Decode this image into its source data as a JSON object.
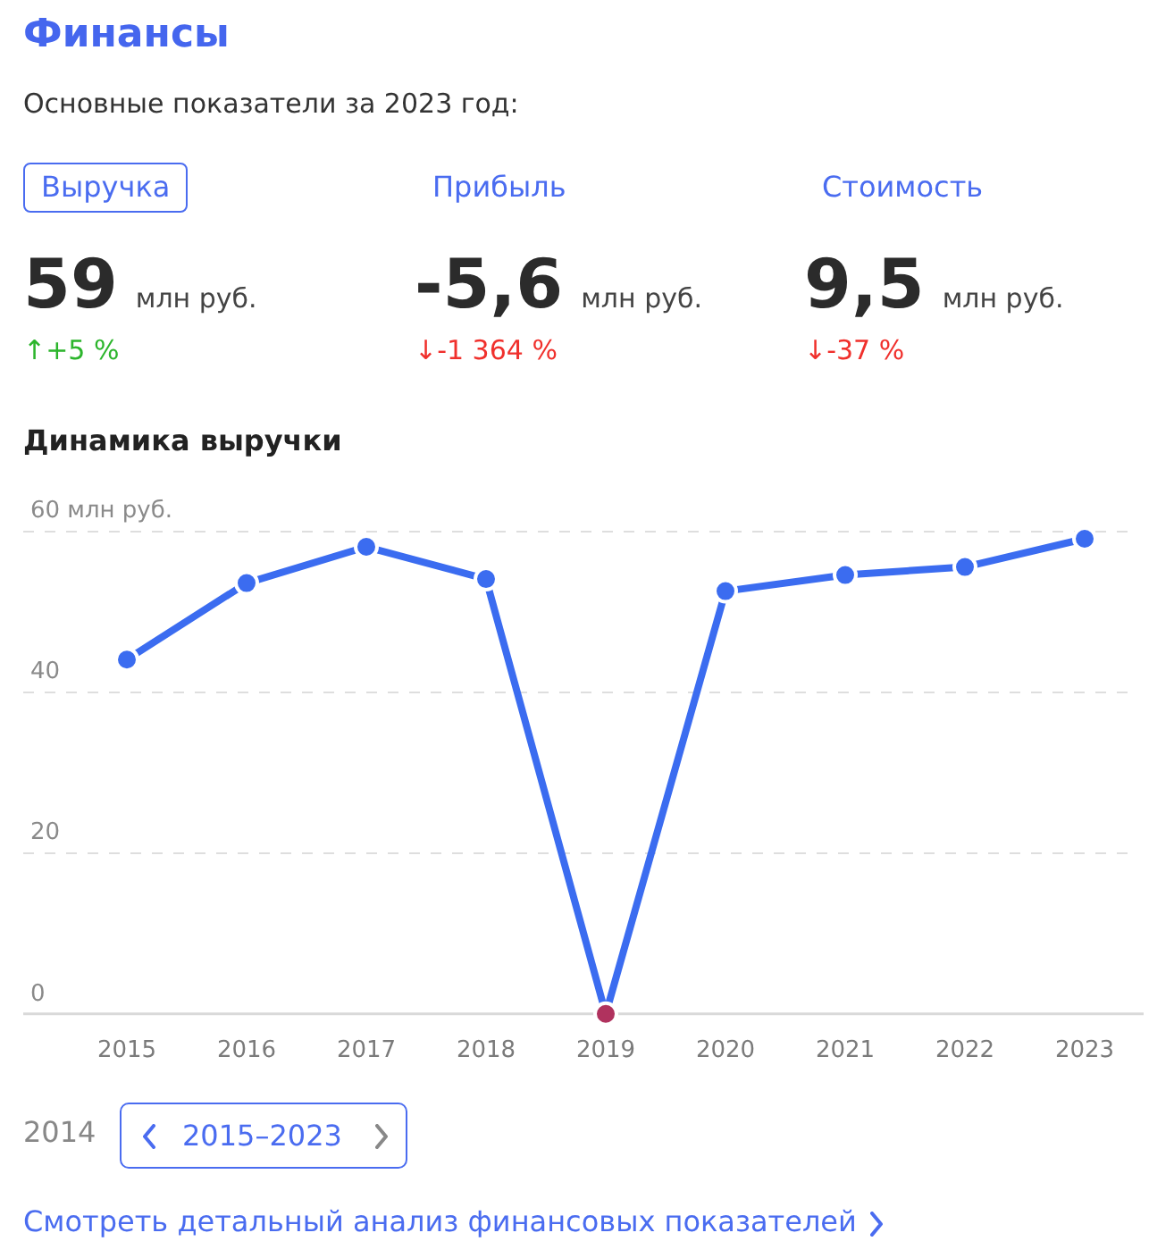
{
  "chart_data": [
    {
      "type": "other",
      "title": "Финансы",
      "subtitle": "Основные показатели за 2023 год:",
      "annotations": [
        "Выручка",
        "59",
        "млн руб.",
        "↑+5 %",
        "Прибыль",
        "-5,6",
        "млн руб.",
        "↓-1 364 %",
        "Стоимость",
        "9,5",
        "млн руб.",
        "↓-37 %"
      ]
    },
    {
      "type": "line",
      "title": "Динамика выручки",
      "categories": [
        "2015",
        "2016",
        "2017",
        "2018",
        "2019",
        "2020",
        "2021",
        "2022",
        "2023"
      ],
      "values": [
        44,
        53.5,
        58,
        54,
        0,
        52.5,
        54.5,
        55.5,
        59
      ],
      "color": "#3b6cf0",
      "colors": [
        "#3b6cf0",
        "#3b6cf0",
        "#3b6cf0",
        "#3b6cf0",
        "#b0325e",
        "#3b6cf0",
        "#3b6cf0",
        "#3b6cf0",
        "#3b6cf0"
      ],
      "marker": "circle",
      "ylim": [
        0,
        60
      ],
      "yticks": [
        0,
        20,
        40,
        {
          "value": 60,
          "label": "60 млн руб."
        }
      ],
      "grid": "y",
      "annotations": [
        "2014",
        "2015–2023",
        "Смотреть детальный анализ финансовых показателей"
      ]
    }
  ]
}
